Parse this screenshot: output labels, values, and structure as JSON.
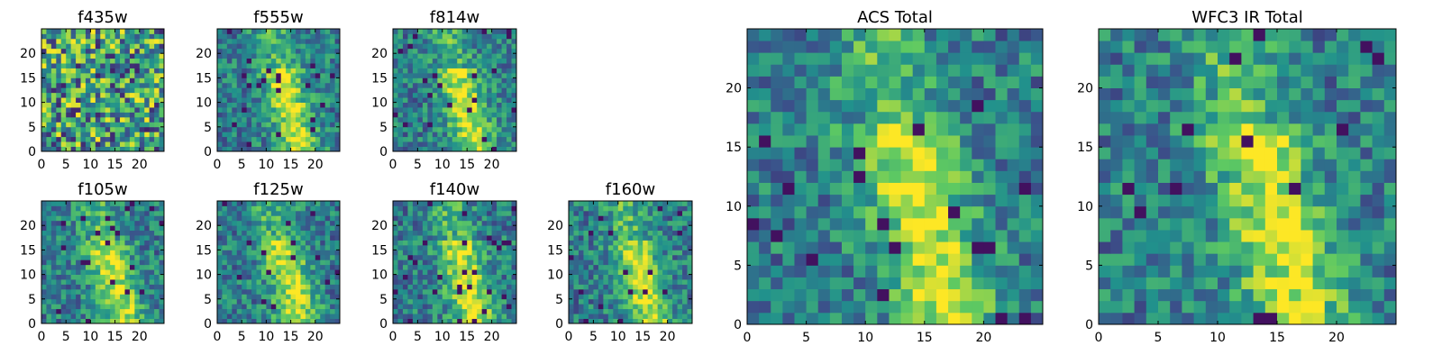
{
  "colormap": [
    "#440154",
    "#3b528b",
    "#21918c",
    "#5ec962",
    "#fde725"
  ],
  "chart_data": [
    {
      "type": "heatmap",
      "title": "f435w",
      "grid_size": 25,
      "xticks": [
        0,
        5,
        10,
        15,
        20
      ],
      "yticks": [
        0,
        5,
        10,
        15,
        20
      ],
      "grid": false,
      "pattern": "noise",
      "seed": 11,
      "note": "noisy"
    },
    {
      "type": "heatmap",
      "title": "f555w",
      "grid_size": 25,
      "xticks": [
        0,
        5,
        10,
        15,
        20
      ],
      "yticks": [
        0,
        5,
        10,
        15,
        20
      ],
      "grid": false,
      "pattern": "diagonal-ridge",
      "seed": 23
    },
    {
      "type": "heatmap",
      "title": "f814w",
      "grid_size": 25,
      "xticks": [
        0,
        5,
        10,
        15,
        20
      ],
      "yticks": [
        0,
        5,
        10,
        15,
        20
      ],
      "grid": false,
      "pattern": "diagonal-ridge",
      "seed": 37
    },
    {
      "type": "heatmap",
      "title": "f105w",
      "grid_size": 25,
      "xticks": [
        0,
        5,
        10,
        15,
        20
      ],
      "yticks": [
        0,
        5,
        10,
        15,
        20
      ],
      "grid": false,
      "pattern": "diagonal-ridge",
      "seed": 41
    },
    {
      "type": "heatmap",
      "title": "f125w",
      "grid_size": 25,
      "xticks": [
        0,
        5,
        10,
        15,
        20
      ],
      "yticks": [
        0,
        5,
        10,
        15,
        20
      ],
      "grid": false,
      "pattern": "diagonal-ridge",
      "seed": 53
    },
    {
      "type": "heatmap",
      "title": "f140w",
      "grid_size": 25,
      "xticks": [
        0,
        5,
        10,
        15,
        20
      ],
      "yticks": [
        0,
        5,
        10,
        15,
        20
      ],
      "grid": false,
      "pattern": "diagonal-ridge",
      "seed": 67
    },
    {
      "type": "heatmap",
      "title": "f160w",
      "grid_size": 25,
      "xticks": [
        0,
        5,
        10,
        15,
        20
      ],
      "yticks": [
        0,
        5,
        10,
        15,
        20
      ],
      "grid": false,
      "pattern": "diagonal-ridge",
      "seed": 79
    },
    {
      "type": "heatmap",
      "title": "ACS Total",
      "grid_size": 25,
      "xticks": [
        0,
        5,
        10,
        15,
        20
      ],
      "yticks": [
        0,
        5,
        10,
        15,
        20
      ],
      "grid": false,
      "pattern": "diagonal-ridge",
      "seed": 83
    },
    {
      "type": "heatmap",
      "title": "WFC3 IR Total",
      "grid_size": 25,
      "xticks": [
        0,
        5,
        10,
        15,
        20
      ],
      "yticks": [
        0,
        5,
        10,
        15,
        20
      ],
      "grid": false,
      "pattern": "diagonal-ridge",
      "seed": 97
    }
  ]
}
